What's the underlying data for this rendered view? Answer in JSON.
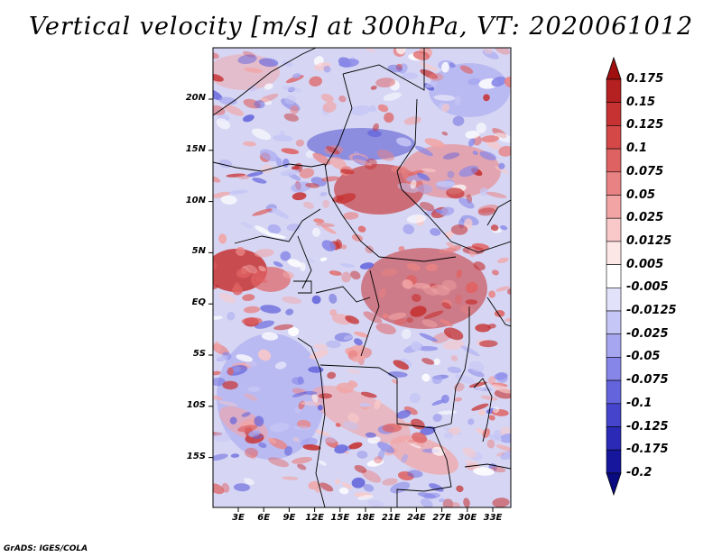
{
  "title": "Vertical velocity [m/s] at 300hPa, VT: 2020061012",
  "credit": "GrADS: IGES/COLA",
  "map": {
    "lat_ticks": [
      "20N",
      "15N",
      "10N",
      "5N",
      "EQ",
      "5S",
      "10S",
      "15S"
    ],
    "lon_ticks": [
      "3E",
      "6E",
      "9E",
      "12E",
      "15E",
      "18E",
      "21E",
      "24E",
      "27E",
      "30E",
      "33E"
    ]
  },
  "colorbar": {
    "levels": [
      "0.175",
      "0.15",
      "0.125",
      "0.1",
      "0.075",
      "0.05",
      "0.025",
      "0.0125",
      "0.005",
      "-0.005",
      "-0.0125",
      "-0.025",
      "-0.05",
      "-0.075",
      "-0.1",
      "-0.125",
      "-0.175",
      "-0.2"
    ],
    "colors": [
      "#a01010",
      "#b52020",
      "#c63232",
      "#d44848",
      "#df6262",
      "#e98282",
      "#f2a4a4",
      "#f9c8c8",
      "#fde6e6",
      "#ffffff",
      "#e2e2fb",
      "#c6c6f6",
      "#a6a6f0",
      "#8686e8",
      "#6464dc",
      "#4444cc",
      "#2a2ab6",
      "#16169c",
      "#0a0a80"
    ]
  }
}
